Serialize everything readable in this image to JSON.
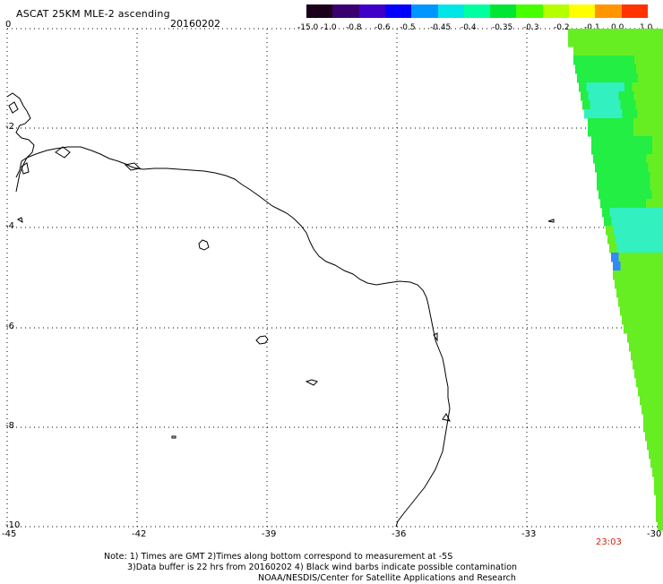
{
  "header": {
    "title": "ASCAT 25KM MLE-2 ascending",
    "date": "20160202"
  },
  "colorbar": {
    "labels": [
      "-15.0",
      "-1.0",
      "-0.8",
      "-0.6",
      "-0.5",
      "-0.45",
      "-0.4",
      "-0.35",
      "-0.3",
      "-0.2",
      "-0.1",
      "0.0",
      "1.0"
    ],
    "colors": [
      "#1a001a",
      "#3a0070",
      "#3f00c8",
      "#0000ff",
      "#0096ff",
      "#00e6e6",
      "#00ffa0",
      "#00e632",
      "#46ff00",
      "#b4ff00",
      "#ffff00",
      "#ff9600",
      "#ff3200"
    ]
  },
  "map": {
    "y_axis_labels": [
      "0",
      "-2",
      "-4",
      "-6",
      "-8",
      "-10"
    ],
    "x_axis_labels": [
      "-45",
      "-42",
      "-39",
      "-36",
      "-33",
      "-30"
    ],
    "swath_colors": {
      "main": "#66ee22",
      "green": "#22ee44",
      "cyan": "#33f0c0",
      "blue": "#3388ff"
    },
    "coast_color": "#000000",
    "time_label": "23:03"
  },
  "notes": [
    "Note: 1) Times are GMT 2)Times along bottom correspond to measurement at -5S",
    "3)Data buffer is 22 hrs from 20160202 4) Black wind barbs indicate possible contamination",
    "NOAA/NESDIS/Center for Satellite Applications and Research"
  ]
}
